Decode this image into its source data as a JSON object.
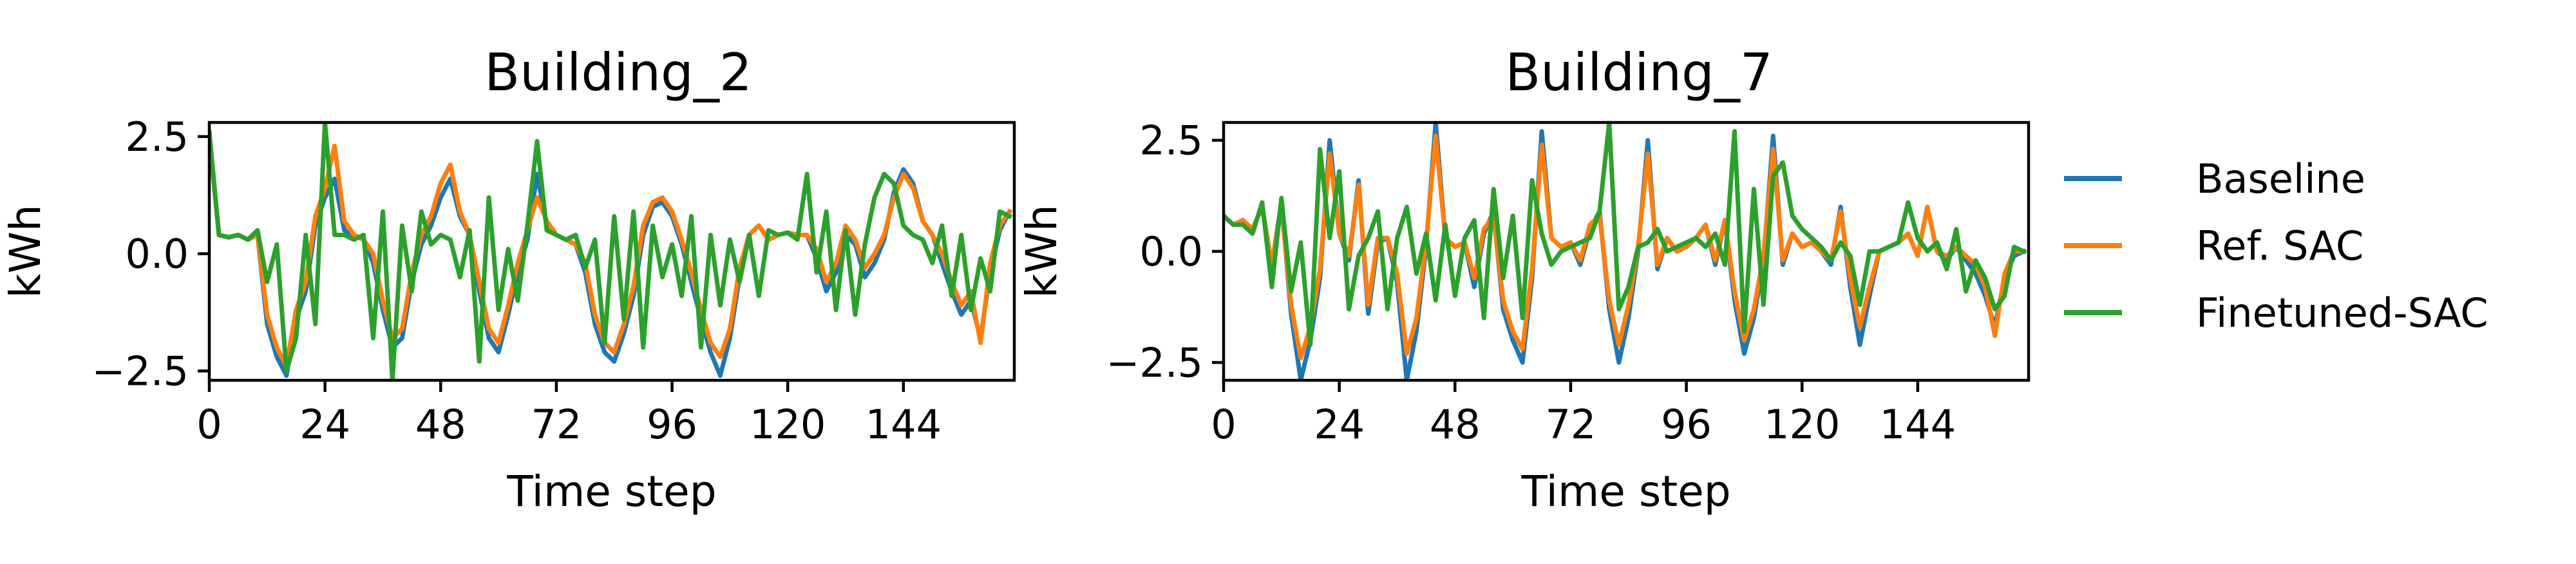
{
  "chart_data": [
    {
      "type": "line",
      "title": "Building_2",
      "xlabel": "Time step",
      "ylabel": "kWh",
      "xlim": [
        0,
        167
      ],
      "ylim": [
        -2.7,
        2.8
      ],
      "xticks": [
        0,
        24,
        48,
        72,
        96,
        120,
        144
      ],
      "yticks": [
        -2.5,
        0.0,
        2.5
      ],
      "xtick_labels": [
        "0",
        "24",
        "48",
        "72",
        "96",
        "120",
        "144"
      ],
      "ytick_labels": [
        "−2.5",
        "0.0",
        "2.5"
      ],
      "series": [
        {
          "name": "Baseline",
          "color": "#1f77b4",
          "x": [
            0,
            2,
            4,
            6,
            8,
            10,
            12,
            14,
            16,
            18,
            20,
            22,
            24,
            26,
            28,
            30,
            32,
            34,
            36,
            38,
            40,
            42,
            44,
            46,
            48,
            50,
            52,
            54,
            56,
            58,
            60,
            62,
            64,
            66,
            68,
            70,
            72,
            74,
            76,
            78,
            80,
            82,
            84,
            86,
            88,
            90,
            92,
            94,
            96,
            98,
            100,
            102,
            104,
            106,
            108,
            110,
            112,
            114,
            116,
            118,
            120,
            122,
            124,
            126,
            128,
            130,
            132,
            134,
            136,
            138,
            140,
            142,
            144,
            146,
            148,
            150,
            152,
            154,
            156,
            158,
            160,
            162,
            164,
            166
          ],
          "y": [
            2.5,
            0.4,
            0.35,
            0.4,
            0.3,
            0.4,
            -1.5,
            -2.2,
            -2.6,
            -1.4,
            -0.8,
            0.6,
            1.2,
            1.6,
            0.5,
            0.4,
            0.3,
            -0.2,
            -1.2,
            -2.0,
            -1.8,
            -0.6,
            0.2,
            0.6,
            1.2,
            1.6,
            0.8,
            0.4,
            -0.8,
            -1.8,
            -2.1,
            -1.3,
            -0.4,
            0.3,
            1.7,
            0.6,
            0.4,
            0.3,
            0.2,
            -0.4,
            -1.5,
            -2.1,
            -2.3,
            -1.7,
            -0.9,
            0.4,
            1.0,
            1.1,
            0.8,
            0.2,
            -0.6,
            -1.4,
            -2.1,
            -2.6,
            -1.8,
            -0.5,
            0.4,
            0.6,
            0.3,
            0.4,
            0.45,
            0.4,
            0.4,
            -0.1,
            -0.8,
            -0.4,
            0.4,
            0.2,
            -0.5,
            -0.2,
            0.3,
            1.3,
            1.8,
            1.5,
            0.7,
            0.4,
            -0.2,
            -0.8,
            -1.3,
            -1.0,
            -1.8,
            -0.4,
            0.5,
            0.9
          ]
        },
        {
          "name": "Ref. SAC",
          "color": "#ff7f0e",
          "x": [
            0,
            2,
            4,
            6,
            8,
            10,
            12,
            14,
            16,
            18,
            20,
            22,
            24,
            26,
            28,
            30,
            32,
            34,
            36,
            38,
            40,
            42,
            44,
            46,
            48,
            50,
            52,
            54,
            56,
            58,
            60,
            62,
            64,
            66,
            68,
            70,
            72,
            74,
            76,
            78,
            80,
            82,
            84,
            86,
            88,
            90,
            92,
            94,
            96,
            98,
            100,
            102,
            104,
            106,
            108,
            110,
            112,
            114,
            116,
            118,
            120,
            122,
            124,
            126,
            128,
            130,
            132,
            134,
            136,
            138,
            140,
            142,
            144,
            146,
            148,
            150,
            152,
            154,
            156,
            158,
            160,
            162,
            164,
            166
          ],
          "y": [
            2.5,
            0.4,
            0.35,
            0.4,
            0.3,
            0.4,
            -1.3,
            -2.0,
            -2.4,
            -1.2,
            -0.6,
            0.8,
            1.4,
            2.3,
            0.7,
            0.4,
            0.3,
            0.0,
            -1.0,
            -1.8,
            -1.6,
            -0.4,
            0.4,
            0.8,
            1.5,
            1.9,
            0.9,
            0.4,
            -0.6,
            -1.6,
            -1.9,
            -1.1,
            -0.2,
            0.5,
            1.2,
            0.7,
            0.4,
            0.3,
            0.2,
            -0.2,
            -1.3,
            -1.9,
            -2.1,
            -1.5,
            -0.7,
            0.6,
            1.1,
            1.2,
            0.9,
            0.3,
            -0.4,
            -1.2,
            -1.9,
            -2.2,
            -1.6,
            -0.3,
            0.4,
            0.6,
            0.3,
            0.4,
            0.45,
            0.4,
            0.4,
            0.1,
            -0.6,
            -0.2,
            0.6,
            0.3,
            -0.3,
            0.0,
            0.4,
            1.2,
            1.7,
            1.4,
            0.7,
            0.4,
            0.0,
            -0.6,
            -1.1,
            -0.8,
            -1.9,
            -0.2,
            0.6,
            0.9
          ]
        },
        {
          "name": "Finetuned-SAC",
          "color": "#2ca02c",
          "x": [
            0,
            2,
            4,
            6,
            8,
            10,
            12,
            14,
            16,
            18,
            20,
            22,
            24,
            26,
            28,
            30,
            32,
            34,
            36,
            38,
            40,
            42,
            44,
            46,
            48,
            50,
            52,
            54,
            56,
            58,
            60,
            62,
            64,
            66,
            68,
            70,
            72,
            74,
            76,
            78,
            80,
            82,
            84,
            86,
            88,
            90,
            92,
            94,
            96,
            98,
            100,
            102,
            104,
            106,
            108,
            110,
            112,
            114,
            116,
            118,
            120,
            122,
            124,
            126,
            128,
            130,
            132,
            134,
            136,
            138,
            140,
            142,
            144,
            146,
            148,
            150,
            152,
            154,
            156,
            158,
            160,
            162,
            164,
            166
          ],
          "y": [
            2.6,
            0.4,
            0.35,
            0.4,
            0.3,
            0.5,
            -0.6,
            0.2,
            -2.5,
            -1.8,
            0.4,
            -1.5,
            2.8,
            0.4,
            0.4,
            0.3,
            0.4,
            -1.8,
            0.9,
            -2.7,
            0.6,
            -0.8,
            0.9,
            0.2,
            0.4,
            0.3,
            -0.5,
            0.5,
            -2.3,
            1.2,
            -1.2,
            0.1,
            -1.0,
            0.6,
            2.4,
            0.5,
            0.4,
            0.3,
            0.4,
            -0.3,
            0.3,
            -1.9,
            0.8,
            -1.4,
            0.9,
            -2.0,
            0.6,
            -0.5,
            0.2,
            -0.9,
            0.8,
            -2.0,
            0.4,
            -1.1,
            0.3,
            -0.6,
            0.4,
            -0.9,
            0.5,
            0.4,
            0.45,
            0.3,
            1.7,
            -0.4,
            0.9,
            -1.2,
            0.5,
            -1.3,
            0.2,
            1.2,
            1.7,
            1.5,
            0.6,
            0.4,
            0.3,
            -0.2,
            0.6,
            -0.9,
            0.4,
            -1.2,
            -0.1,
            -0.8,
            0.9,
            0.8
          ]
        }
      ]
    },
    {
      "type": "line",
      "title": "Building_7",
      "xlabel": "Time step",
      "ylabel": "kWh",
      "xlim": [
        0,
        167
      ],
      "ylim": [
        -2.9,
        2.9
      ],
      "xticks": [
        0,
        24,
        48,
        72,
        96,
        120,
        144
      ],
      "yticks": [
        -2.5,
        0.0,
        2.5
      ],
      "xtick_labels": [
        "0",
        "24",
        "48",
        "72",
        "96",
        "120",
        "144"
      ],
      "ytick_labels": [
        "−2.5",
        "0.0",
        "2.5"
      ],
      "series": [
        {
          "name": "Baseline",
          "color": "#1f77b4",
          "x": [
            0,
            2,
            4,
            6,
            8,
            10,
            12,
            14,
            16,
            18,
            20,
            22,
            24,
            26,
            28,
            30,
            32,
            34,
            36,
            38,
            40,
            42,
            44,
            46,
            48,
            50,
            52,
            54,
            56,
            58,
            60,
            62,
            64,
            66,
            68,
            70,
            72,
            74,
            76,
            78,
            80,
            82,
            84,
            86,
            88,
            90,
            92,
            94,
            96,
            98,
            100,
            102,
            104,
            106,
            108,
            110,
            112,
            114,
            116,
            118,
            120,
            122,
            124,
            126,
            128,
            130,
            132,
            134,
            136,
            138,
            140,
            142,
            144,
            146,
            148,
            150,
            152,
            154,
            156,
            158,
            160,
            162,
            164,
            166
          ],
          "y": [
            0.8,
            0.6,
            0.7,
            0.5,
            1.0,
            -0.3,
            1.1,
            -1.4,
            -2.9,
            -2.0,
            -0.6,
            2.5,
            0.4,
            -0.2,
            1.6,
            -1.4,
            0.2,
            0.3,
            -0.7,
            -2.9,
            -1.8,
            0.1,
            2.9,
            0.3,
            0.1,
            0.2,
            -0.8,
            0.4,
            0.9,
            -1.3,
            -2.0,
            -2.5,
            -0.6,
            2.7,
            0.3,
            0.1,
            0.2,
            -0.3,
            0.5,
            0.9,
            -1.3,
            -2.5,
            -1.5,
            0.0,
            2.5,
            -0.4,
            0.3,
            0.0,
            0.1,
            0.3,
            0.6,
            -0.3,
            0.7,
            -1.1,
            -2.3,
            -1.5,
            -0.2,
            2.6,
            -0.3,
            0.4,
            0.1,
            0.2,
            0.0,
            -0.3,
            1.0,
            -0.8,
            -2.1,
            -1.0,
            0.0,
            0.1,
            0.2,
            0.4,
            -0.1,
            1.0,
            0.0,
            -0.2,
            0.1,
            -0.2,
            -0.5,
            -1.0,
            -1.7,
            -0.6,
            -0.1,
            0.0
          ]
        },
        {
          "name": "Ref. SAC",
          "color": "#ff7f0e",
          "x": [
            0,
            2,
            4,
            6,
            8,
            10,
            12,
            14,
            16,
            18,
            20,
            22,
            24,
            26,
            28,
            30,
            32,
            34,
            36,
            38,
            40,
            42,
            44,
            46,
            48,
            50,
            52,
            54,
            56,
            58,
            60,
            62,
            64,
            66,
            68,
            70,
            72,
            74,
            76,
            78,
            80,
            82,
            84,
            86,
            88,
            90,
            92,
            94,
            96,
            98,
            100,
            102,
            104,
            106,
            108,
            110,
            112,
            114,
            116,
            118,
            120,
            122,
            124,
            126,
            128,
            130,
            132,
            134,
            136,
            138,
            140,
            142,
            144,
            146,
            148,
            150,
            152,
            154,
            156,
            158,
            160,
            162,
            164,
            166
          ],
          "y": [
            0.8,
            0.6,
            0.7,
            0.5,
            1.0,
            -0.3,
            1.0,
            -1.2,
            -2.4,
            -1.7,
            -0.4,
            2.2,
            0.4,
            -0.1,
            1.5,
            -1.2,
            0.3,
            0.3,
            -0.5,
            -2.3,
            -1.5,
            0.2,
            2.6,
            0.3,
            0.1,
            0.2,
            -0.6,
            0.5,
            0.8,
            -1.1,
            -1.8,
            -2.2,
            -0.4,
            2.4,
            0.3,
            0.1,
            0.2,
            -0.2,
            0.6,
            0.8,
            -1.1,
            -2.1,
            -1.2,
            0.1,
            2.2,
            -0.3,
            0.3,
            0.0,
            0.1,
            0.3,
            0.6,
            -0.2,
            0.7,
            -0.9,
            -2.0,
            -1.3,
            -0.1,
            2.3,
            -0.2,
            0.4,
            0.1,
            0.2,
            0.0,
            -0.2,
            0.9,
            -0.6,
            -1.7,
            -0.8,
            0.0,
            0.1,
            0.2,
            0.4,
            -0.1,
            1.0,
            0.0,
            -0.1,
            0.1,
            -0.1,
            -0.3,
            -0.8,
            -1.9,
            -0.5,
            0.0,
            0.0
          ]
        },
        {
          "name": "Finetuned-SAC",
          "color": "#2ca02c",
          "x": [
            0,
            2,
            4,
            6,
            8,
            10,
            12,
            14,
            16,
            18,
            20,
            22,
            24,
            26,
            28,
            30,
            32,
            34,
            36,
            38,
            40,
            42,
            44,
            46,
            48,
            50,
            52,
            54,
            56,
            58,
            60,
            62,
            64,
            66,
            68,
            70,
            72,
            74,
            76,
            78,
            80,
            82,
            84,
            86,
            88,
            90,
            92,
            94,
            96,
            98,
            100,
            102,
            104,
            106,
            108,
            110,
            112,
            114,
            116,
            118,
            120,
            122,
            124,
            126,
            128,
            130,
            132,
            134,
            136,
            138,
            140,
            142,
            144,
            146,
            148,
            150,
            152,
            154,
            156,
            158,
            160,
            162,
            164,
            166
          ],
          "y": [
            0.8,
            0.6,
            0.6,
            0.4,
            1.1,
            -0.8,
            1.2,
            -0.9,
            0.2,
            -2.1,
            2.3,
            0.3,
            1.8,
            -1.3,
            -0.1,
            0.3,
            0.9,
            -1.3,
            0.3,
            1.0,
            -0.5,
            0.4,
            -1.1,
            0.6,
            -1.0,
            0.3,
            0.7,
            -1.5,
            1.4,
            -0.6,
            0.8,
            -1.5,
            1.6,
            0.4,
            -0.3,
            0.0,
            0.1,
            0.2,
            0.3,
            0.9,
            2.9,
            -1.3,
            -0.8,
            0.1,
            0.2,
            0.5,
            0.0,
            0.1,
            0.2,
            0.3,
            0.1,
            0.4,
            -0.3,
            2.7,
            -1.8,
            1.4,
            -1.2,
            1.7,
            2.0,
            0.8,
            0.5,
            0.3,
            0.1,
            -0.2,
            0.2,
            -0.1,
            -1.2,
            0.0,
            0.0,
            0.1,
            0.2,
            1.1,
            0.3,
            0.0,
            0.2,
            -0.4,
            0.5,
            -0.9,
            -0.2,
            -0.6,
            -1.3,
            -1.0,
            0.1,
            0.0
          ]
        }
      ]
    }
  ]
}
